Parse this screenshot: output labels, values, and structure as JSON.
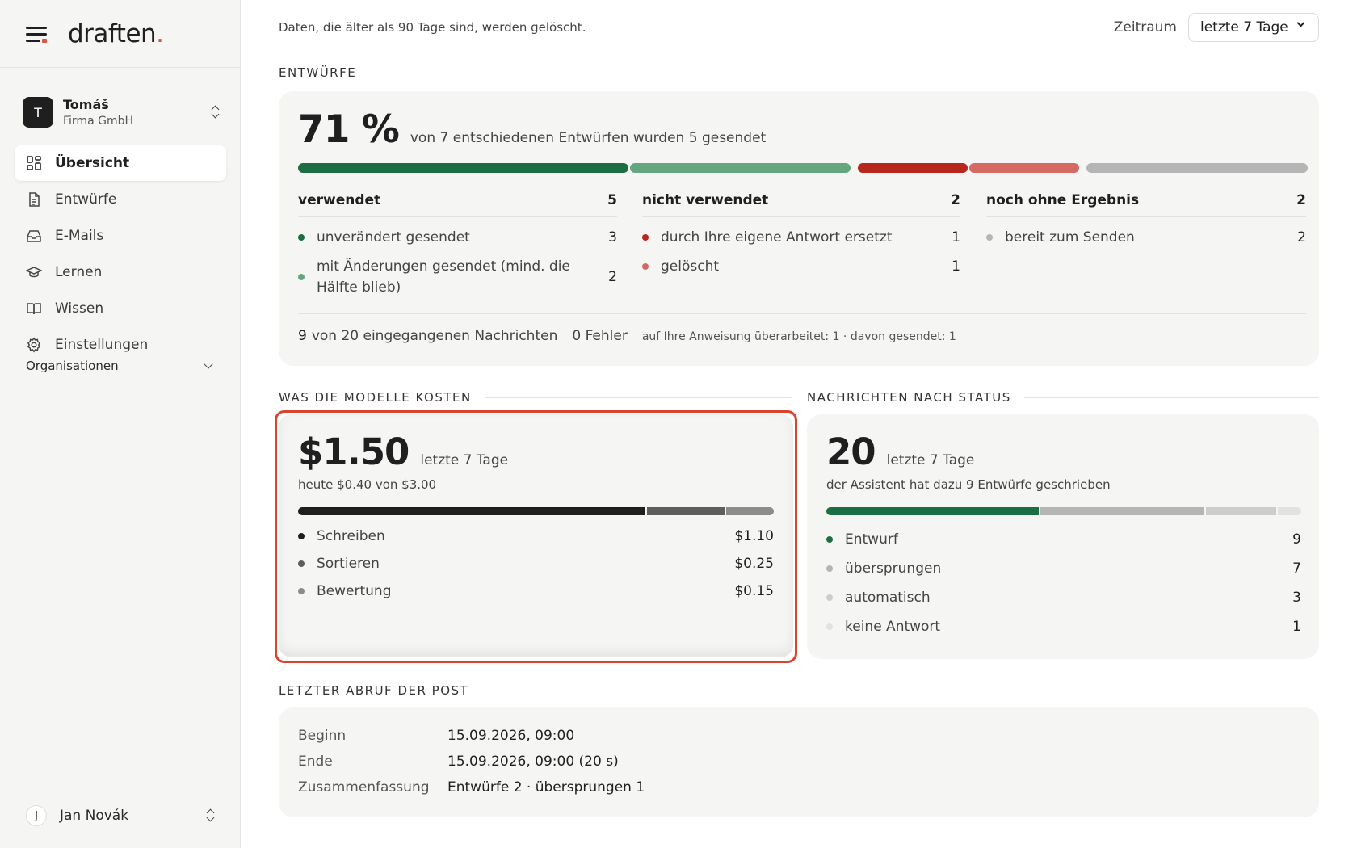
{
  "brand": {
    "name": "draften",
    "dot": "."
  },
  "account": {
    "initial": "T",
    "name": "Tomáš",
    "org": "Firma GmbH"
  },
  "nav": [
    {
      "label": "Übersicht",
      "icon": "grid-icon",
      "active": true
    },
    {
      "label": "Entwürfe",
      "icon": "document-icon",
      "active": false
    },
    {
      "label": "E-Mails",
      "icon": "inbox-icon",
      "active": false
    },
    {
      "label": "Lernen",
      "icon": "graduation-cap-icon",
      "active": false
    },
    {
      "label": "Wissen",
      "icon": "book-icon",
      "active": false
    },
    {
      "label": "Einstellungen",
      "icon": "gear-icon",
      "active": false
    }
  ],
  "organizations": {
    "label": "Organisationen"
  },
  "user": {
    "initial": "J",
    "name": "Jan Novák"
  },
  "topbar": {
    "retention_note": "Daten, die älter als 90 Tage sind, werden gelöscht.",
    "period_label": "Zeitraum",
    "period_value": "letzte 7 Tage"
  },
  "drafts": {
    "section_title": "ENTWÜRFE",
    "percent": "71 %",
    "summary": "von 7 entschiedenen Entwürfen wurden 5 gesendet",
    "colors": {
      "green_dark": "#1e6e43",
      "green_light": "#66a67f",
      "red_dark": "#b8261e",
      "red_light": "#d46a62",
      "grey": "#b5b5b5"
    },
    "bar": {
      "used_unchanged": 3,
      "used_changed": 2,
      "replaced": 1,
      "deleted": 1,
      "pending": 2
    },
    "columns": [
      {
        "title": "verwendet",
        "count": "5",
        "rows": [
          {
            "label": "unverändert gesendet",
            "value": "3",
            "color": "#1e6e43"
          },
          {
            "label": "mit Änderungen gesendet (mind. die Hälfte blieb)",
            "value": "2",
            "color": "#66a67f"
          }
        ]
      },
      {
        "title": "nicht verwendet",
        "count": "2",
        "rows": [
          {
            "label": "durch Ihre eigene Antwort ersetzt",
            "value": "1",
            "color": "#b8261e"
          },
          {
            "label": "gelöscht",
            "value": "1",
            "color": "#d46a62"
          }
        ]
      },
      {
        "title": "noch ohne Ergebnis",
        "count": "2",
        "rows": [
          {
            "label": "bereit zum Senden",
            "value": "2",
            "color": "#b5b5b5"
          }
        ]
      }
    ],
    "footer": {
      "received_count": "9",
      "received_text": "von 20 eingegangenen Nachrichten",
      "errors": "0 Fehler",
      "revisions": "auf Ihre Anweisung überarbeitet: 1 · davon gesendet: 1"
    }
  },
  "costs": {
    "section_title": "WAS DIE MODELLE KOSTEN",
    "total": "$1.50",
    "period": "letzte 7 Tage",
    "today": "heute $0.40 von $3.00",
    "highlight_color": "#d9442f",
    "items": [
      {
        "label": "Schreiben",
        "value": "$1.10",
        "amount": 1.1,
        "color": "#1f1f1f"
      },
      {
        "label": "Sortieren",
        "value": "$0.25",
        "amount": 0.25,
        "color": "#5e5e5e"
      },
      {
        "label": "Bewertung",
        "value": "$0.15",
        "amount": 0.15,
        "color": "#8c8c8c"
      }
    ]
  },
  "messages": {
    "section_title": "NACHRICHTEN NACH STATUS",
    "total": "20",
    "period": "letzte 7 Tage",
    "note": "der Assistent hat dazu 9 Entwürfe geschrieben",
    "items": [
      {
        "label": "Entwurf",
        "value": "9",
        "amount": 9,
        "color": "#1e6e43"
      },
      {
        "label": "übersprungen",
        "value": "7",
        "amount": 7,
        "color": "#b5b5b5"
      },
      {
        "label": "automatisch",
        "value": "3",
        "amount": 3,
        "color": "#cdcdcd"
      },
      {
        "label": "keine Antwort",
        "value": "1",
        "amount": 1,
        "color": "#e2e2e2"
      }
    ]
  },
  "fetch": {
    "section_title": "LETZTER ABRUF DER POST",
    "rows": [
      {
        "key": "Beginn",
        "value": "15.09.2026, 09:00"
      },
      {
        "key": "Ende",
        "value": "15.09.2026, 09:00 (20 s)"
      },
      {
        "key": "Zusammenfassung",
        "value": "Entwürfe 2 · übersprungen 1"
      }
    ]
  }
}
